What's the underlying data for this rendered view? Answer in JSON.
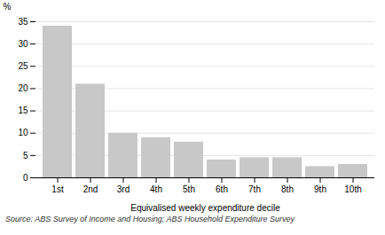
{
  "chart_data": {
    "type": "bar",
    "categories": [
      "1st",
      "2nd",
      "3rd",
      "4th",
      "5th",
      "6th",
      "7th",
      "8th",
      "9th",
      "10th"
    ],
    "values": [
      34.0,
      21.0,
      10.0,
      9.0,
      8.0,
      4.0,
      4.5,
      4.5,
      2.5,
      3.0
    ],
    "color": "#c8c8c8",
    "xlabel": "Equivalised weekly expenditure decile",
    "ylabel": "%",
    "ylim": [
      0,
      35
    ],
    "yticks": [
      0,
      5,
      10,
      15,
      20,
      25,
      30,
      35
    ],
    "grid": true,
    "annotations": [
      "Source: ABS Survey of Income and Housing; ABS Household Expenditure Survey"
    ]
  }
}
